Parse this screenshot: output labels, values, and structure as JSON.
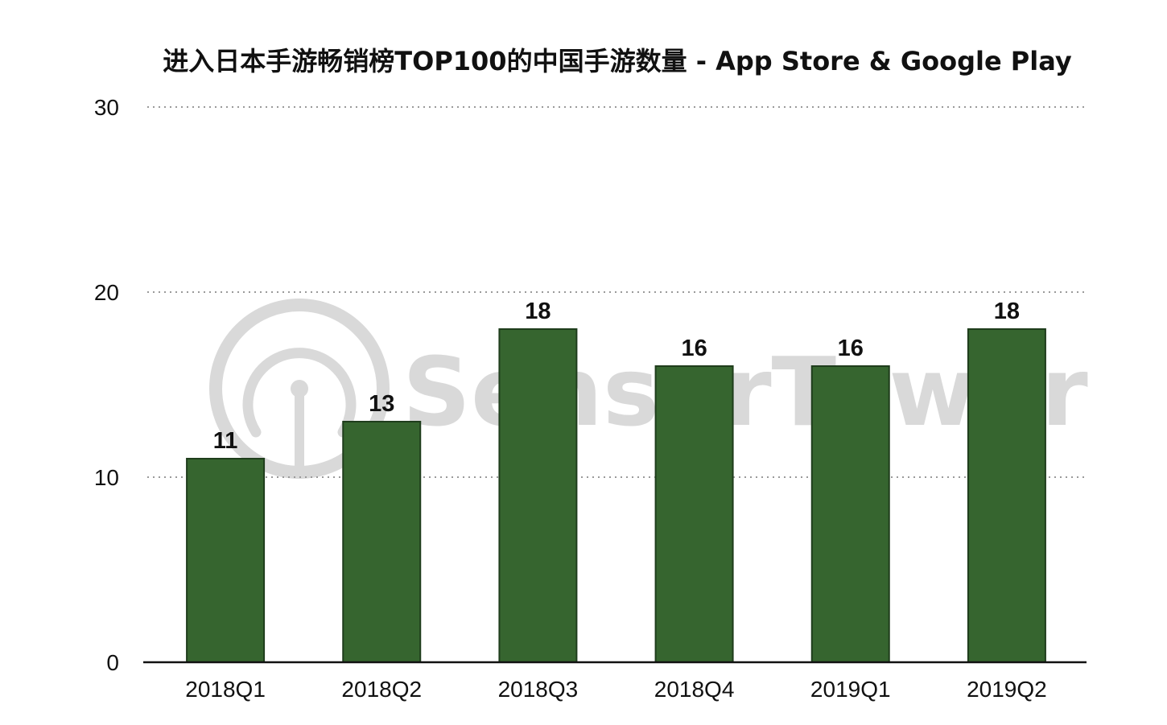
{
  "watermark": {
    "text": "SensorTower",
    "icon": "sensor-tower-logo-icon",
    "color": "#d9d9d9"
  },
  "chart_data": {
    "type": "bar",
    "title": "进入日本手游畅销榜TOP100的中国手游数量 - App Store & Google Play",
    "xlabel": "",
    "ylabel": "",
    "categories": [
      "2018Q1",
      "2018Q2",
      "2018Q3",
      "2018Q4",
      "2019Q1",
      "2019Q2"
    ],
    "values": [
      11,
      13,
      18,
      16,
      16,
      18
    ],
    "data_labels": [
      "11",
      "13",
      "18",
      "16",
      "16",
      "18"
    ],
    "ylim": [
      0,
      30
    ],
    "yticks": [
      "0",
      "10",
      "20",
      "30"
    ],
    "grid": true,
    "legend": "none",
    "bar_color": "#36652f"
  }
}
